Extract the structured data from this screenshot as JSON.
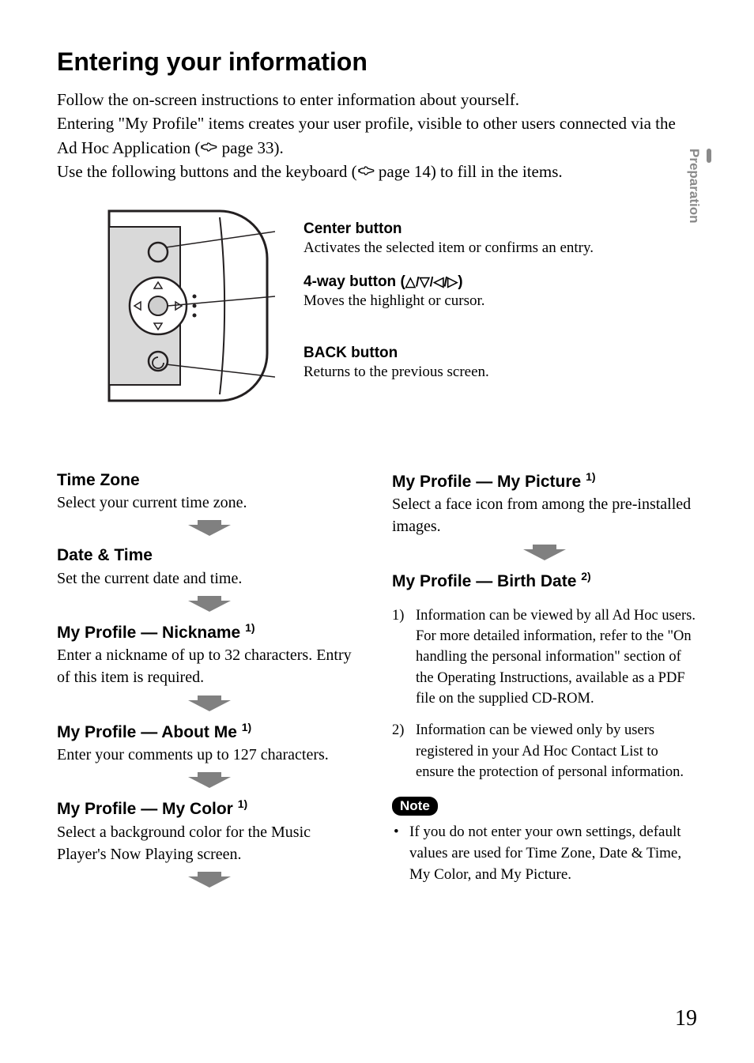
{
  "colors": {
    "text": "#000000",
    "bg": "#ffffff",
    "side_tab": "#8a8a8a",
    "diagram_stroke": "#231f20",
    "diagram_fill_light": "#d9d9d9",
    "diagram_fill_mid": "#cfcfcf",
    "arrow_fill": "#808080"
  },
  "side_tab": "Preparation",
  "title": "Entering your information",
  "intro": {
    "line1": "Follow the on-screen instructions to enter information about yourself.",
    "line2a": "Entering \"My Profile\" items creates your user profile, visible to other users connected via the Ad Hoc Application (",
    "line2_ref": " page 33).",
    "line3a": "Use the following buttons and the keyboard (",
    "line3_ref": " page 14) to fill in the items."
  },
  "callouts": {
    "center": {
      "title": "Center button",
      "body": "Activates the selected item or confirms an entry."
    },
    "fourway": {
      "prefix": "4-way button (",
      "symbols": "△/▽/◁/▷",
      "suffix": ")",
      "body": "Moves the highlight or cursor."
    },
    "back": {
      "title": "BACK button",
      "body": "Returns to the previous screen."
    }
  },
  "left_sections": [
    {
      "heading": "Time Zone",
      "sup": "",
      "body": "Select your current time zone.",
      "arrow": true
    },
    {
      "heading": "Date & Time",
      "sup": "",
      "body": "Set the current date and time.",
      "arrow": true
    },
    {
      "heading": "My Profile — Nickname ",
      "sup": "1)",
      "body": "Enter a nickname of up to 32 characters. Entry of this item is required.",
      "arrow": true
    },
    {
      "heading": "My Profile — About Me ",
      "sup": "1)",
      "body": "Enter your comments up to 127 characters.",
      "arrow": true
    },
    {
      "heading": "My Profile — My Color ",
      "sup": "1)",
      "body": "Select a background color for the Music Player's Now Playing screen.",
      "arrow": true
    }
  ],
  "right_sections": [
    {
      "heading": "My Profile — My Picture ",
      "sup": "1)",
      "body": "Select a face icon from among the pre-installed images.",
      "arrow": true
    },
    {
      "heading": "My Profile — Birth Date ",
      "sup": "2)",
      "body": "",
      "arrow": false
    }
  ],
  "footnotes": [
    {
      "num": "1)",
      "text": "Information can be viewed by all Ad Hoc users. For more detailed information, refer to the \"On handling the personal information\" section of the Operating Instructions, available as a PDF file on the supplied CD-ROM."
    },
    {
      "num": "2)",
      "text": "Information can be viewed only by users registered in your Ad Hoc Contact List to ensure the protection of personal information."
    }
  ],
  "note": {
    "label": "Note",
    "item": "If you do not enter your own settings, default values are used for Time Zone, Date & Time, My Color, and My Picture."
  },
  "page_number": "19"
}
